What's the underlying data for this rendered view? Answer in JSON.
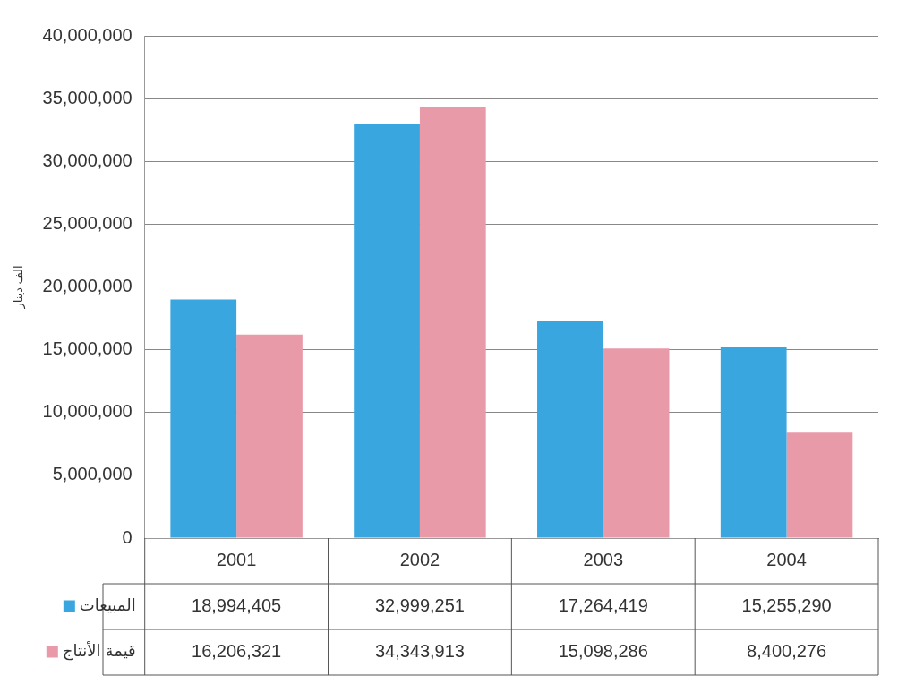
{
  "chart_data": {
    "type": "bar",
    "ylabel": "الف دينار",
    "categories": [
      "2001",
      "2002",
      "2003",
      "2004"
    ],
    "series": [
      {
        "name": "المبيعات",
        "color": "#3aa6e0",
        "values": [
          18994405,
          32999251,
          17264419,
          15255290
        ],
        "value_labels": [
          "18,994,405",
          "32,999,251",
          "17,264,419",
          "15,255,290"
        ]
      },
      {
        "name": "قيمة الأنتاج",
        "color": "#e99aa8",
        "values": [
          16206321,
          34343913,
          15098286,
          8400276
        ],
        "value_labels": [
          "16,206,321",
          "34,343,913",
          "15,098,286",
          "8,400,276"
        ]
      }
    ],
    "ylim": [
      0,
      40000000
    ],
    "yticks": [
      {
        "value": 0,
        "label": "0"
      },
      {
        "value": 5000000,
        "label": "5,000,000"
      },
      {
        "value": 10000000,
        "label": "10,000,000"
      },
      {
        "value": 15000000,
        "label": "15,000,000"
      },
      {
        "value": 20000000,
        "label": "20,000,000"
      },
      {
        "value": 25000000,
        "label": "25,000,000"
      },
      {
        "value": 30000000,
        "label": "30,000,000"
      },
      {
        "value": 35000000,
        "label": "35,000,000"
      },
      {
        "value": 40000000,
        "label": "40,000,000"
      }
    ],
    "grid": "y",
    "legend": "bottom"
  }
}
